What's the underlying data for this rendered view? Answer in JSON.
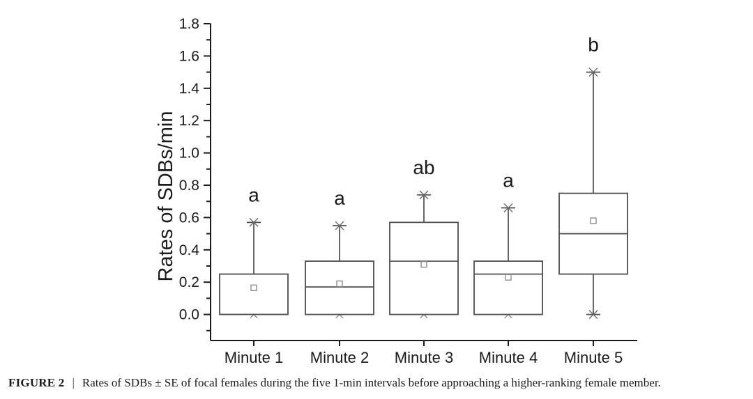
{
  "figure": {
    "caption_label": "FIGURE 2",
    "caption_separator": "|",
    "caption_text": "Rates of SDBs ± SE of focal females during the five 1-min intervals before approaching a higher-ranking female member."
  },
  "chart_data": {
    "type": "boxplot",
    "title": "",
    "xlabel": "",
    "ylabel": "Rates of SDBs/min",
    "ylim": [
      -0.16,
      1.8
    ],
    "y_major_tick_labels": [
      "0.0",
      "0.2",
      "0.4",
      "0.6",
      "0.8",
      "1.0",
      "1.2",
      "1.4",
      "1.6",
      "1.8"
    ],
    "y_minor_tick_step": 0.1,
    "grid": false,
    "legend": null,
    "categories": [
      "Minute 1",
      "Minute 2",
      "Minute 3",
      "Minute 4",
      "Minute 5"
    ],
    "series": [
      {
        "category": "Minute 1",
        "whisker_low": 0.0,
        "q1": 0.0,
        "median": 0.0,
        "q3": 0.25,
        "whisker_high": 0.57,
        "mean": 0.165,
        "sig_label": "a"
      },
      {
        "category": "Minute 2",
        "whisker_low": 0.0,
        "q1": 0.0,
        "median": 0.17,
        "q3": 0.33,
        "whisker_high": 0.55,
        "mean": 0.19,
        "sig_label": "a"
      },
      {
        "category": "Minute 3",
        "whisker_low": 0.0,
        "q1": 0.0,
        "median": 0.33,
        "q3": 0.57,
        "whisker_high": 0.74,
        "mean": 0.31,
        "sig_label": "ab"
      },
      {
        "category": "Minute 4",
        "whisker_low": 0.0,
        "q1": 0.0,
        "median": 0.25,
        "q3": 0.33,
        "whisker_high": 0.66,
        "mean": 0.23,
        "sig_label": "a"
      },
      {
        "category": "Minute 5",
        "whisker_low": 0.0,
        "q1": 0.25,
        "median": 0.5,
        "q3": 0.75,
        "whisker_high": 1.5,
        "mean": 0.58,
        "sig_label": "b"
      }
    ]
  }
}
